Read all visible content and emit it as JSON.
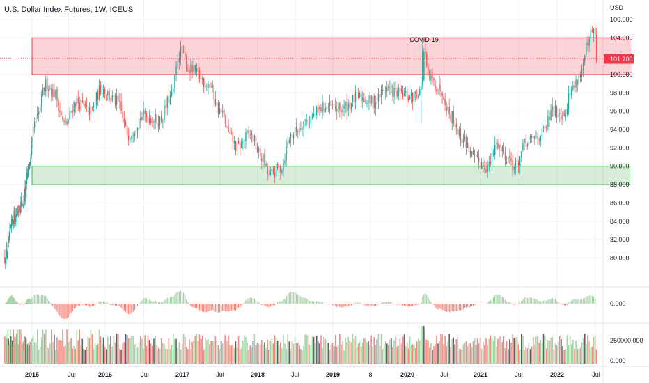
{
  "header": {
    "title": "U.S. Dollar Index Futures, 1W, ICEUS"
  },
  "chart_data": {
    "type": "candlestick",
    "title": "U.S. Dollar Index Futures, 1W, ICEUS",
    "currency_label": "USD",
    "last_price_label": "101.700",
    "annotation": "COVID-19",
    "price_axis": {
      "range": [
        77.0,
        106.6
      ],
      "ticks": [
        "106.000",
        "104.000",
        "102.000",
        "100.000",
        "98.000",
        "96.000",
        "94.000",
        "92.000",
        "90.000",
        "88.000",
        "86.000",
        "84.000",
        "82.000",
        "80.000"
      ]
    },
    "oscillator_axis": {
      "ticks": [
        "0.000"
      ]
    },
    "volume_axis": {
      "ticks": [
        "250000.000",
        "0.000"
      ]
    },
    "time_labels": [
      "2015",
      "Jul",
      "2016",
      "Jul",
      "2017",
      "Jul",
      "2018",
      "Jul",
      "2019",
      "8",
      "2020",
      "Jul",
      "2021",
      "Jul",
      "2022",
      "Jul"
    ],
    "zones": [
      {
        "name": "resistance",
        "from_year": 2015.0,
        "to_year": 2022.95,
        "low": 100.0,
        "high": 104.0,
        "color": "#f23645"
      },
      {
        "name": "support",
        "from_year": 2015.0,
        "to_year": 2022.95,
        "low": 88.0,
        "high": 90.0,
        "color": "#4caf50"
      }
    ],
    "keyframes": [
      [
        2014.15,
        80.0
      ],
      [
        2014.45,
        84.5
      ],
      [
        2014.7,
        86.0
      ],
      [
        2014.95,
        90.5
      ],
      [
        2015.05,
        95.0
      ],
      [
        2015.2,
        99.0
      ],
      [
        2015.3,
        98.0
      ],
      [
        2015.45,
        94.5
      ],
      [
        2015.6,
        97.0
      ],
      [
        2015.8,
        96.0
      ],
      [
        2015.95,
        98.5
      ],
      [
        2016.15,
        97.0
      ],
      [
        2016.3,
        93.5
      ],
      [
        2016.5,
        95.5
      ],
      [
        2016.7,
        95.0
      ],
      [
        2016.85,
        97.5
      ],
      [
        2016.97,
        102.5
      ],
      [
        2017.1,
        100.5
      ],
      [
        2017.35,
        99.0
      ],
      [
        2017.5,
        96.0
      ],
      [
        2017.65,
        93.0
      ],
      [
        2017.72,
        92.0
      ],
      [
        2017.9,
        93.5
      ],
      [
        2018.05,
        91.0
      ],
      [
        2018.15,
        89.0
      ],
      [
        2018.3,
        89.8
      ],
      [
        2018.45,
        93.5
      ],
      [
        2018.65,
        95.0
      ],
      [
        2018.9,
        96.5
      ],
      [
        2019.1,
        96.2
      ],
      [
        2019.35,
        97.5
      ],
      [
        2019.55,
        97.0
      ],
      [
        2019.72,
        98.5
      ],
      [
        2019.85,
        98.0
      ],
      [
        2020.05,
        97.5
      ],
      [
        2020.2,
        98.5
      ],
      [
        2020.22,
        102.5
      ],
      [
        2020.3,
        99.5
      ],
      [
        2020.45,
        98.5
      ],
      [
        2020.6,
        95.5
      ],
      [
        2020.75,
        93.0
      ],
      [
        2020.95,
        90.5
      ],
      [
        2021.1,
        90.0
      ],
      [
        2021.22,
        92.5
      ],
      [
        2021.35,
        91.0
      ],
      [
        2021.45,
        90.0
      ],
      [
        2021.6,
        92.5
      ],
      [
        2021.8,
        93.5
      ],
      [
        2021.95,
        96.0
      ],
      [
        2022.08,
        95.8
      ],
      [
        2022.2,
        98.5
      ],
      [
        2022.3,
        100.0
      ],
      [
        2022.4,
        103.0
      ],
      [
        2022.45,
        104.5
      ],
      [
        2022.48,
        104.8
      ],
      [
        2022.52,
        101.7
      ]
    ],
    "price_timeline": {
      "2015": 2015.0,
      "Jul_2015": 2015.5,
      "2016": 2016.0,
      "Jul_2016": 2016.5,
      "2017": 2017.0,
      "Jul_2017": 2017.5,
      "2018": 2018.0,
      "Jul_2018": 2018.5,
      "2019": 2019.0,
      "2020": 2020.0,
      "2021": 2021.0,
      "2022": 2022.0
    },
    "colors": {
      "up": "#26a69a",
      "down": "#ef5350",
      "vol_up": "#a5d6a7",
      "vol_down": "#f28b82",
      "vol_dark": "#5d6066",
      "grid": "#eef0f3"
    }
  }
}
